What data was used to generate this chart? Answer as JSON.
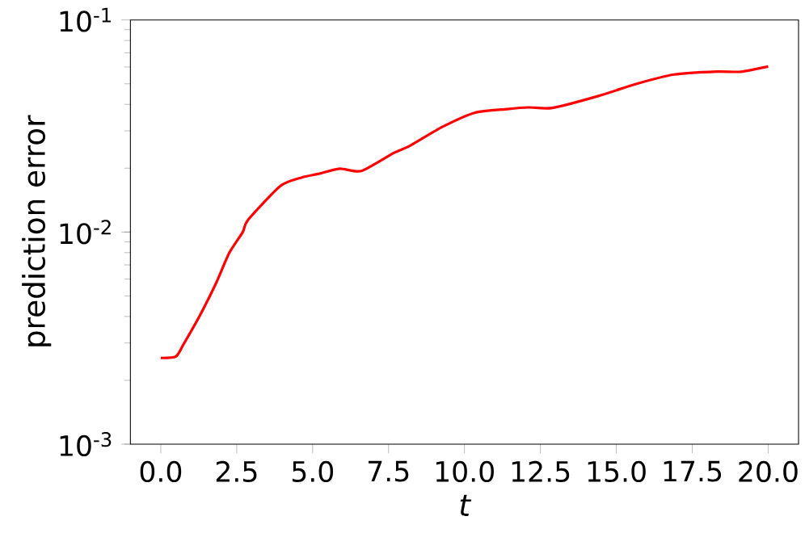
{
  "chart_data": {
    "type": "line",
    "xlabel": "t",
    "ylabel": "prediction error",
    "log": "y",
    "xlim": [
      -1,
      21
    ],
    "xticks": [
      {
        "value": 0,
        "label": "0.0"
      },
      {
        "value": 2.5,
        "label": "2.5"
      },
      {
        "value": 5,
        "label": "5.0"
      },
      {
        "value": 7.5,
        "label": "7.5"
      },
      {
        "value": 10,
        "label": "10.0"
      },
      {
        "value": 12.5,
        "label": "12.5"
      },
      {
        "value": 15,
        "label": "15.0"
      },
      {
        "value": 17.5,
        "label": "17.5"
      },
      {
        "value": 20,
        "label": "20.0"
      }
    ],
    "ylim": [
      0.001,
      0.1
    ],
    "yticks": [
      {
        "value": 0.001,
        "label": "10$^{-3}$"
      },
      {
        "value": 0.01,
        "label": "10$^{-2}$"
      },
      {
        "value": 0.1,
        "label": "10$^{-1}$"
      }
    ],
    "x": [
      0,
      0.5,
      0.75,
      1.29,
      1.81,
      2.26,
      2.7,
      2.87,
      3.94,
      4.65,
      5.18,
      5.89,
      6.6,
      7.67,
      8.2,
      9.27,
      10.33,
      11.4,
      12.1,
      12.9,
      14.41,
      15.65,
      16.9,
      18.32,
      19.1,
      20
    ],
    "series": [
      {
        "color": "#ff0000",
        "values": [
          0.00255,
          0.00259,
          0.00296,
          0.00405,
          0.0057,
          0.008,
          0.01,
          0.0114,
          0.0165,
          0.0181,
          0.0188,
          0.0199,
          0.0194,
          0.0236,
          0.0255,
          0.0313,
          0.0365,
          0.038,
          0.0387,
          0.0385,
          0.0438,
          0.0499,
          0.0553,
          0.0571,
          0.057,
          0.0603
        ]
      }
    ]
  }
}
